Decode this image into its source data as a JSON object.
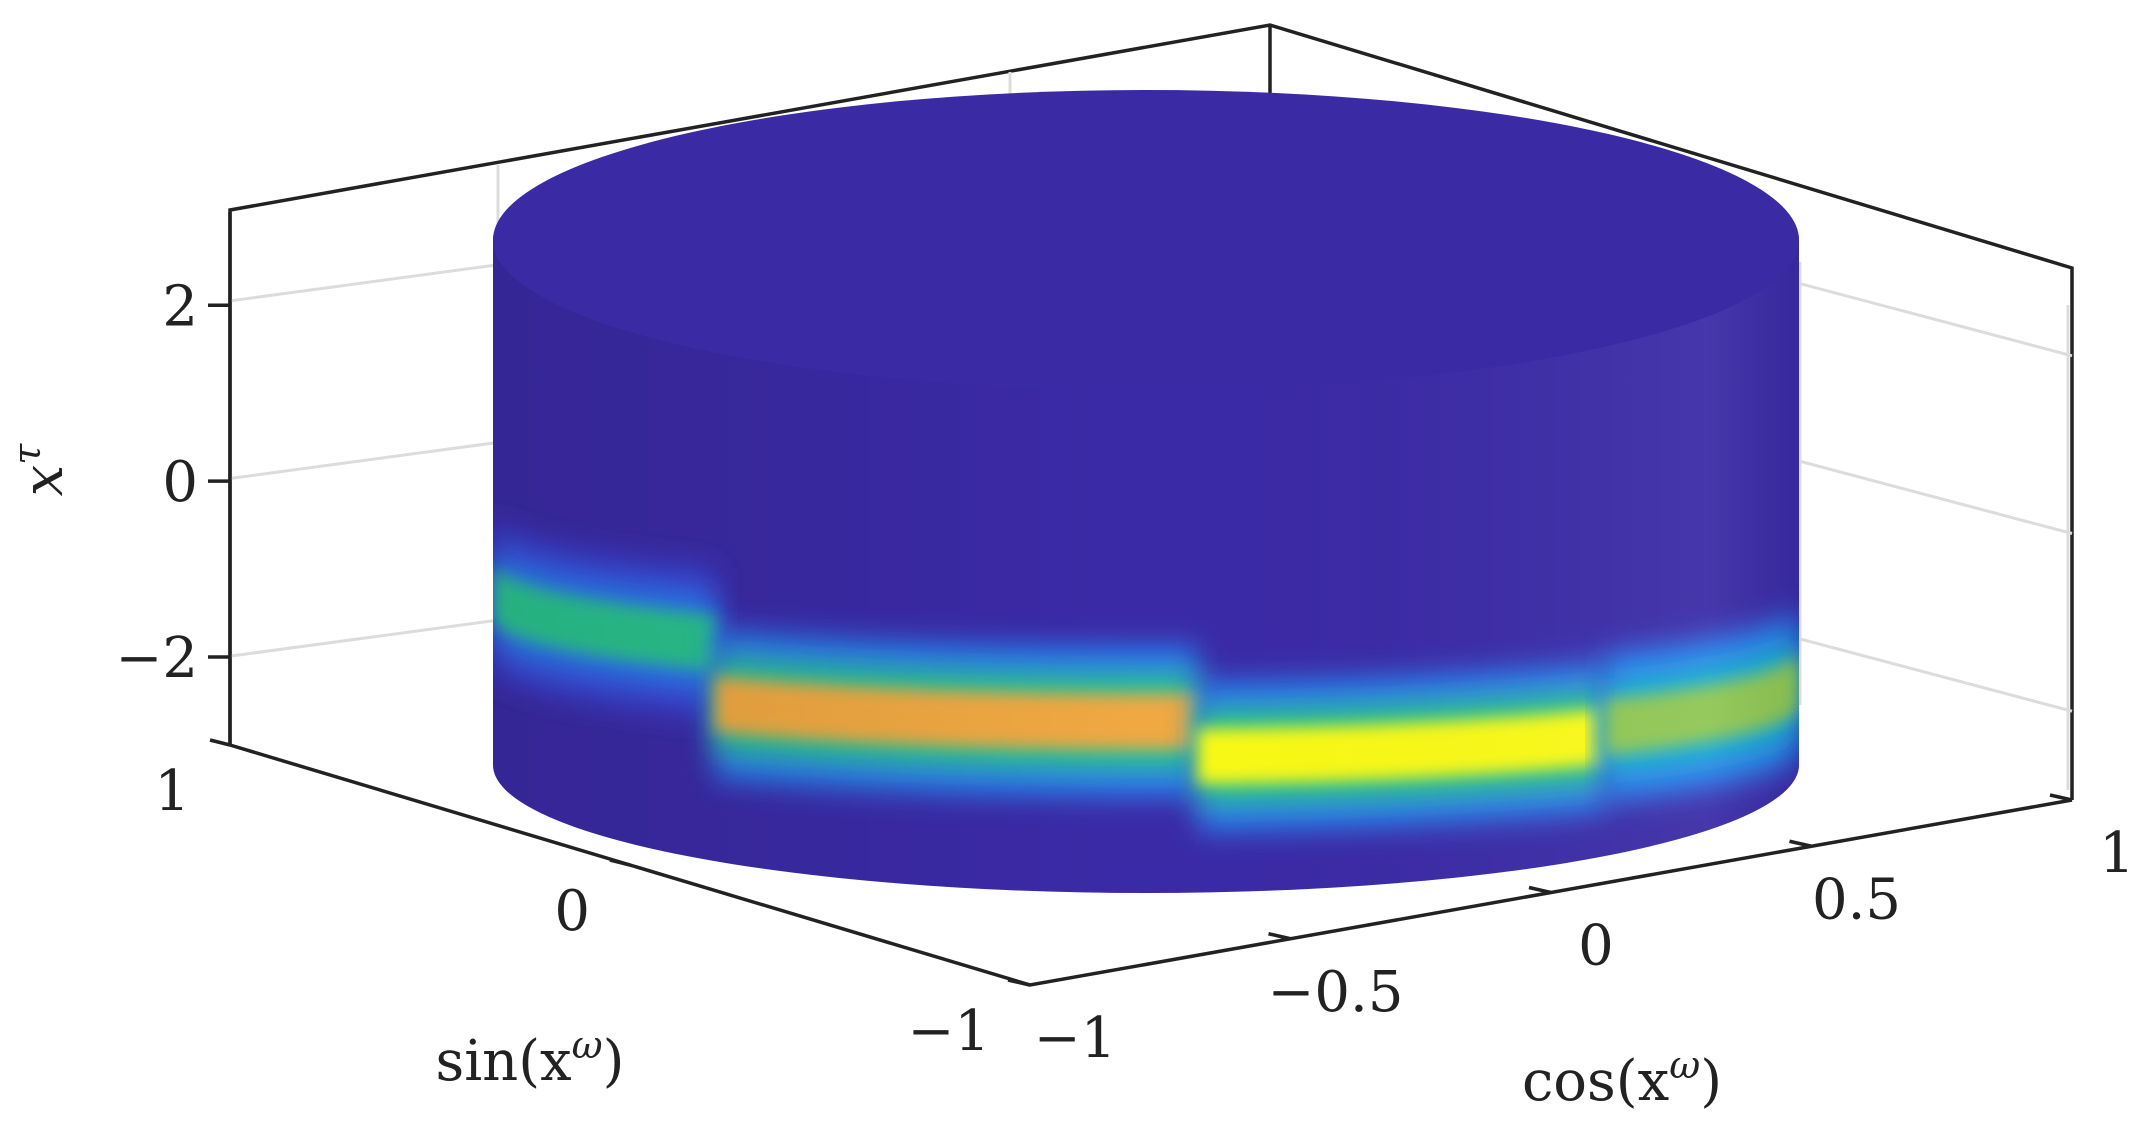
{
  "chart_data": {
    "type": "surface",
    "surface": "cylinder",
    "colormap": "parula",
    "colormap_stops": [
      "#3b2aa6",
      "#3a44d6",
      "#2b7ef0",
      "#14b0cc",
      "#2cc38e",
      "#8fc653",
      "#f0a843",
      "#fafa15"
    ],
    "xlabel": "cos(x",
    "xlabel_sup": "ω",
    "xlabel_close": ")",
    "ylabel": "sin(x",
    "ylabel_sup": "ω",
    "ylabel_close": ")",
    "zlabel": "x",
    "zlabel_sup": "τ",
    "xlim": [
      -1,
      1
    ],
    "ylim": [
      -1,
      1
    ],
    "zlim": [
      -3,
      3
    ],
    "xticks": [
      -1,
      -0.5,
      0,
      0.5,
      1
    ],
    "xtick_labels": [
      "−1",
      "−0.5",
      "0",
      "0.5",
      "1"
    ],
    "yticks": [
      -1,
      0,
      1
    ],
    "ytick_labels": [
      "−1",
      "0",
      "1"
    ],
    "zticks": [
      -2,
      0,
      2
    ],
    "ztick_labels": [
      "−2",
      "0",
      "2"
    ],
    "grid": true,
    "bands": [
      {
        "omega_from": 0.0,
        "omega_to": 0.85,
        "tau_center": -1.0,
        "peak_level": 0.55
      },
      {
        "omega_from": 0.85,
        "omega_to": 1.65,
        "tau_center": -1.7,
        "peak_level": 0.85
      },
      {
        "omega_from": 1.65,
        "omega_to": 2.35,
        "tau_center": -2.1,
        "peak_level": 1.0
      },
      {
        "omega_from": 2.35,
        "omega_to": 3.14,
        "tau_center": -2.0,
        "peak_level": 0.65
      }
    ]
  }
}
